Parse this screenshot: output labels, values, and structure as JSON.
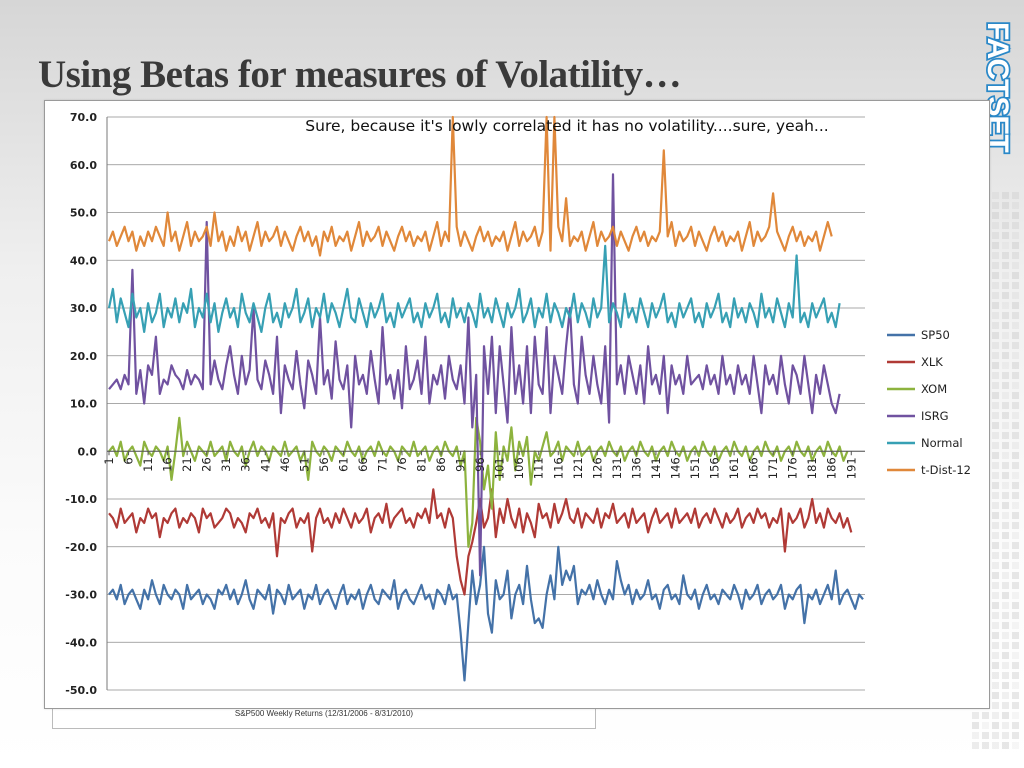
{
  "slide": {
    "title": "Using Betas for measures of Volatility…",
    "logo_text": "FACTSET",
    "footnote": "S&P500 Weekly Returns (12/31/2006 - 8/31/2010)"
  },
  "chart_data": {
    "type": "line",
    "title": "Sure, because it's lowly correlated it has no volatility....sure, yeah...",
    "ylim": [
      -50,
      70
    ],
    "yticks": [
      70,
      60,
      50,
      40,
      30,
      20,
      10,
      0,
      -10,
      -20,
      -30,
      -40,
      -50
    ],
    "ytick_labels": [
      "70.0",
      "60.0",
      "50.0",
      "40.0",
      "30.0",
      "20.0",
      "10.0",
      "0.0",
      "-10.0",
      "-20.0",
      "-30.0",
      "-40.0",
      "-50.0"
    ],
    "xtick_labels": [
      "1",
      "6",
      "11",
      "16",
      "21",
      "26",
      "31",
      "36",
      "41",
      "46",
      "51",
      "56",
      "61",
      "66",
      "71",
      "76",
      "81",
      "86",
      "91",
      "96",
      "101",
      "106",
      "111",
      "116",
      "121",
      "126",
      "131",
      "136",
      "141",
      "146",
      "151",
      "156",
      "161",
      "166",
      "171",
      "176",
      "181",
      "186",
      "191"
    ],
    "grid": true,
    "legend_position": "right",
    "series": [
      {
        "name": "SP50",
        "color": "#4472a8",
        "values": [
          -30,
          -29,
          -31,
          -28,
          -32,
          -30,
          -29,
          -31,
          -33,
          -29,
          -31,
          -27,
          -30,
          -32,
          -28,
          -30,
          -31,
          -29,
          -30,
          -33,
          -28,
          -31,
          -30,
          -29,
          -32,
          -30,
          -31,
          -33,
          -29,
          -30,
          -28,
          -31,
          -29,
          -32,
          -30,
          -27,
          -31,
          -33,
          -29,
          -30,
          -31,
          -28,
          -34,
          -29,
          -30,
          -32,
          -28,
          -31,
          -30,
          -29,
          -33,
          -30,
          -31,
          -28,
          -32,
          -30,
          -29,
          -31,
          -33,
          -30,
          -28,
          -32,
          -30,
          -31,
          -29,
          -33,
          -30,
          -28,
          -31,
          -32,
          -29,
          -30,
          -31,
          -27,
          -33,
          -30,
          -29,
          -31,
          -32,
          -30,
          -28,
          -31,
          -30,
          -33,
          -29,
          -30,
          -32,
          -28,
          -31,
          -30,
          -38,
          -48,
          -36,
          -25,
          -32,
          -28,
          -20,
          -34,
          -38,
          -27,
          -31,
          -30,
          -25,
          -35,
          -30,
          -28,
          -32,
          -24,
          -31,
          -36,
          -35,
          -37,
          -30,
          -26,
          -31,
          -20,
          -28,
          -25,
          -27,
          -24,
          -32,
          -29,
          -30,
          -28,
          -31,
          -27,
          -30,
          -32,
          -29,
          -31,
          -23,
          -27,
          -30,
          -28,
          -32,
          -29,
          -31,
          -30,
          -27,
          -31,
          -30,
          -33,
          -29,
          -28,
          -31,
          -30,
          -32,
          -26,
          -30,
          -31,
          -29,
          -33,
          -30,
          -28,
          -31,
          -30,
          -32,
          -29,
          -30,
          -31,
          -28,
          -30,
          -33,
          -29,
          -31,
          -30,
          -28,
          -32,
          -30,
          -29,
          -31,
          -30,
          -28,
          -33,
          -30,
          -31,
          -29,
          -28,
          -36,
          -30,
          -31,
          -29,
          -32,
          -30,
          -28,
          -31,
          -25,
          -32,
          -30,
          -29,
          -31,
          -33,
          -30,
          -31
        ]
      },
      {
        "name": "XLK",
        "color": "#b03a36",
        "values": [
          -13,
          -14,
          -16,
          -12,
          -15,
          -14,
          -13,
          -17,
          -14,
          -15,
          -12,
          -14,
          -13,
          -18,
          -14,
          -15,
          -13,
          -12,
          -16,
          -14,
          -15,
          -13,
          -14,
          -17,
          -12,
          -14,
          -13,
          -16,
          -15,
          -14,
          -12,
          -13,
          -16,
          -14,
          -15,
          -17,
          -13,
          -14,
          -12,
          -15,
          -14,
          -16,
          -13,
          -22,
          -14,
          -15,
          -13,
          -12,
          -16,
          -14,
          -15,
          -13,
          -21,
          -14,
          -12,
          -15,
          -14,
          -16,
          -13,
          -15,
          -12,
          -14,
          -16,
          -13,
          -15,
          -14,
          -12,
          -17,
          -14,
          -13,
          -15,
          -11,
          -16,
          -14,
          -13,
          -12,
          -15,
          -14,
          -16,
          -13,
          -14,
          -12,
          -15,
          -8,
          -14,
          -13,
          -16,
          -12,
          -14,
          -22,
          -27,
          -30,
          -22,
          -19,
          -15,
          -10,
          -16,
          -14,
          -8,
          -18,
          -12,
          -15,
          -10,
          -14,
          -16,
          -12,
          -17,
          -13,
          -15,
          -18,
          -11,
          -14,
          -13,
          -16,
          -11,
          -15,
          -13,
          -10,
          -14,
          -15,
          -12,
          -16,
          -13,
          -14,
          -15,
          -12,
          -16,
          -13,
          -14,
          -11,
          -15,
          -14,
          -13,
          -16,
          -12,
          -15,
          -14,
          -13,
          -17,
          -14,
          -12,
          -15,
          -14,
          -13,
          -16,
          -12,
          -15,
          -14,
          -13,
          -15,
          -12,
          -16,
          -14,
          -13,
          -15,
          -12,
          -14,
          -16,
          -13,
          -15,
          -14,
          -12,
          -16,
          -14,
          -13,
          -15,
          -12,
          -14,
          -13,
          -16,
          -14,
          -15,
          -12,
          -21,
          -13,
          -15,
          -14,
          -12,
          -16,
          -14,
          -10,
          -15,
          -13,
          -16,
          -12,
          -14,
          -15,
          -13,
          -16,
          -14,
          -17
        ]
      },
      {
        "name": "XOM",
        "color": "#8db33e",
        "values": [
          0,
          1,
          -1,
          2,
          -2,
          0,
          1,
          -1,
          -3,
          2,
          0,
          -1,
          1,
          0,
          -2,
          1,
          -6,
          0,
          7,
          -1,
          2,
          0,
          -2,
          1,
          0,
          -1,
          2,
          -1,
          0,
          1,
          -2,
          2,
          0,
          -1,
          1,
          -3,
          0,
          2,
          -1,
          1,
          0,
          -2,
          1,
          0,
          -1,
          2,
          -1,
          0,
          1,
          -2,
          0,
          -6,
          2,
          0,
          -1,
          1,
          0,
          -2,
          1,
          0,
          -1,
          2,
          0,
          -1,
          1,
          -2,
          0,
          1,
          -1,
          2,
          0,
          -1,
          1,
          0,
          -2,
          1,
          0,
          -1,
          2,
          -1,
          0,
          1,
          -2,
          0,
          1,
          -1,
          2,
          0,
          -1,
          1,
          -3,
          0,
          -20,
          -15,
          7,
          2,
          -8,
          -3,
          -12,
          4,
          -6,
          1,
          -2,
          5,
          -4,
          2,
          -1,
          3,
          -7,
          0,
          -2,
          1,
          4,
          -1,
          0,
          2,
          -2,
          1,
          0,
          -1,
          2,
          -1,
          0,
          1,
          -2,
          0,
          1,
          -1,
          2,
          0,
          -1,
          1,
          -2,
          0,
          1,
          -1,
          2,
          0,
          -1,
          1,
          -2,
          0,
          1,
          -1,
          2,
          0,
          -1,
          1,
          -2,
          0,
          1,
          -1,
          2,
          0,
          -1,
          1,
          -2,
          0,
          1,
          -1,
          2,
          0,
          -1,
          1,
          -2,
          0,
          1,
          -1,
          2,
          0,
          -1,
          1,
          -2,
          0,
          1,
          -1,
          2,
          0,
          -1,
          1,
          -2,
          0,
          1,
          -1,
          2,
          0,
          -1,
          1,
          -2,
          0
        ]
      },
      {
        "name": "ISRG",
        "color": "#7052a0",
        "values": [
          13,
          14,
          15,
          13,
          16,
          14,
          38,
          12,
          17,
          10,
          18,
          16,
          24,
          12,
          15,
          14,
          18,
          16,
          15,
          13,
          17,
          14,
          16,
          15,
          13,
          48,
          14,
          19,
          15,
          13,
          18,
          22,
          16,
          12,
          20,
          14,
          17,
          30,
          15,
          13,
          19,
          16,
          12,
          24,
          8,
          18,
          15,
          13,
          21,
          14,
          9,
          19,
          16,
          12,
          28,
          14,
          17,
          11,
          23,
          15,
          13,
          18,
          5,
          20,
          14,
          16,
          12,
          21,
          15,
          10,
          26,
          14,
          16,
          11,
          17,
          9,
          22,
          13,
          15,
          19,
          12,
          24,
          10,
          16,
          14,
          18,
          11,
          20,
          15,
          13,
          18,
          10,
          28,
          5,
          16,
          -26,
          22,
          12,
          24,
          8,
          22,
          14,
          6,
          26,
          12,
          18,
          10,
          22,
          8,
          24,
          14,
          12,
          26,
          8,
          20,
          16,
          12,
          22,
          30,
          14,
          10,
          24,
          16,
          12,
          20,
          14,
          10,
          22,
          6,
          58,
          14,
          18,
          12,
          20,
          16,
          12,
          18,
          10,
          22,
          14,
          16,
          12,
          20,
          8,
          18,
          14,
          16,
          12,
          20,
          14,
          15,
          16,
          13,
          18,
          14,
          16,
          12,
          20,
          14,
          16,
          12,
          18,
          14,
          16,
          12,
          20,
          14,
          8,
          18,
          14,
          16,
          12,
          20,
          14,
          10,
          18,
          16,
          12,
          20,
          14,
          8,
          16,
          12,
          18,
          14,
          10,
          8,
          12
        ]
      },
      {
        "name": "Normal",
        "color": "#37a0b4",
        "values": [
          30,
          34,
          27,
          32,
          29,
          26,
          33,
          28,
          30,
          25,
          31,
          27,
          29,
          33,
          26,
          30,
          28,
          32,
          27,
          31,
          29,
          34,
          26,
          30,
          28,
          33,
          27,
          31,
          25,
          29,
          32,
          28,
          30,
          26,
          33,
          29,
          27,
          31,
          28,
          25,
          30,
          33,
          27,
          29,
          26,
          31,
          28,
          30,
          34,
          27,
          29,
          32,
          26,
          30,
          28,
          33,
          27,
          31,
          29,
          26,
          30,
          34,
          28,
          27,
          32,
          29,
          26,
          31,
          28,
          30,
          33,
          27,
          29,
          26,
          31,
          28,
          30,
          32,
          27,
          29,
          26,
          31,
          28,
          30,
          33,
          27,
          29,
          26,
          32,
          28,
          30,
          27,
          31,
          29,
          26,
          33,
          28,
          30,
          27,
          32,
          29,
          26,
          31,
          28,
          30,
          34,
          27,
          29,
          32,
          26,
          30,
          28,
          33,
          27,
          31,
          29,
          26,
          30,
          28,
          33,
          27,
          31,
          29,
          26,
          32,
          28,
          30,
          43,
          27,
          31,
          29,
          26,
          33,
          28,
          30,
          27,
          32,
          29,
          26,
          31,
          28,
          30,
          33,
          27,
          29,
          26,
          31,
          28,
          30,
          32,
          27,
          29,
          26,
          31,
          28,
          30,
          33,
          27,
          29,
          26,
          32,
          28,
          30,
          27,
          31,
          29,
          26,
          33,
          28,
          30,
          27,
          32,
          29,
          26,
          31,
          28,
          41,
          27,
          29,
          26,
          31,
          28,
          30,
          32,
          27,
          29,
          26,
          31
        ]
      },
      {
        "name": "t-Dist-12",
        "color": "#e0883a",
        "values": [
          44,
          46,
          43,
          45,
          47,
          44,
          46,
          42,
          45,
          43,
          46,
          44,
          47,
          45,
          43,
          50,
          44,
          46,
          42,
          45,
          48,
          43,
          46,
          44,
          45,
          47,
          43,
          50,
          44,
          46,
          42,
          45,
          43,
          47,
          44,
          46,
          42,
          45,
          48,
          43,
          46,
          44,
          45,
          47,
          43,
          46,
          44,
          42,
          45,
          47,
          44,
          46,
          43,
          45,
          41,
          46,
          44,
          47,
          43,
          45,
          44,
          46,
          42,
          45,
          48,
          43,
          46,
          44,
          45,
          47,
          43,
          46,
          44,
          42,
          45,
          47,
          44,
          46,
          43,
          45,
          44,
          46,
          42,
          45,
          48,
          43,
          46,
          44,
          70,
          47,
          43,
          46,
          44,
          42,
          45,
          47,
          44,
          46,
          43,
          45,
          44,
          46,
          42,
          45,
          48,
          43,
          46,
          44,
          45,
          47,
          43,
          46,
          70,
          42,
          70,
          47,
          44,
          53,
          43,
          45,
          44,
          46,
          42,
          45,
          48,
          43,
          46,
          44,
          45,
          47,
          43,
          46,
          44,
          42,
          45,
          47,
          44,
          46,
          43,
          45,
          44,
          46,
          63,
          45,
          48,
          43,
          46,
          44,
          45,
          47,
          43,
          46,
          44,
          42,
          45,
          47,
          44,
          46,
          43,
          45,
          44,
          46,
          42,
          45,
          48,
          43,
          46,
          44,
          45,
          47,
          54,
          46,
          44,
          42,
          45,
          47,
          44,
          46,
          43,
          45,
          44,
          46,
          42,
          45,
          48,
          45
        ]
      }
    ]
  }
}
